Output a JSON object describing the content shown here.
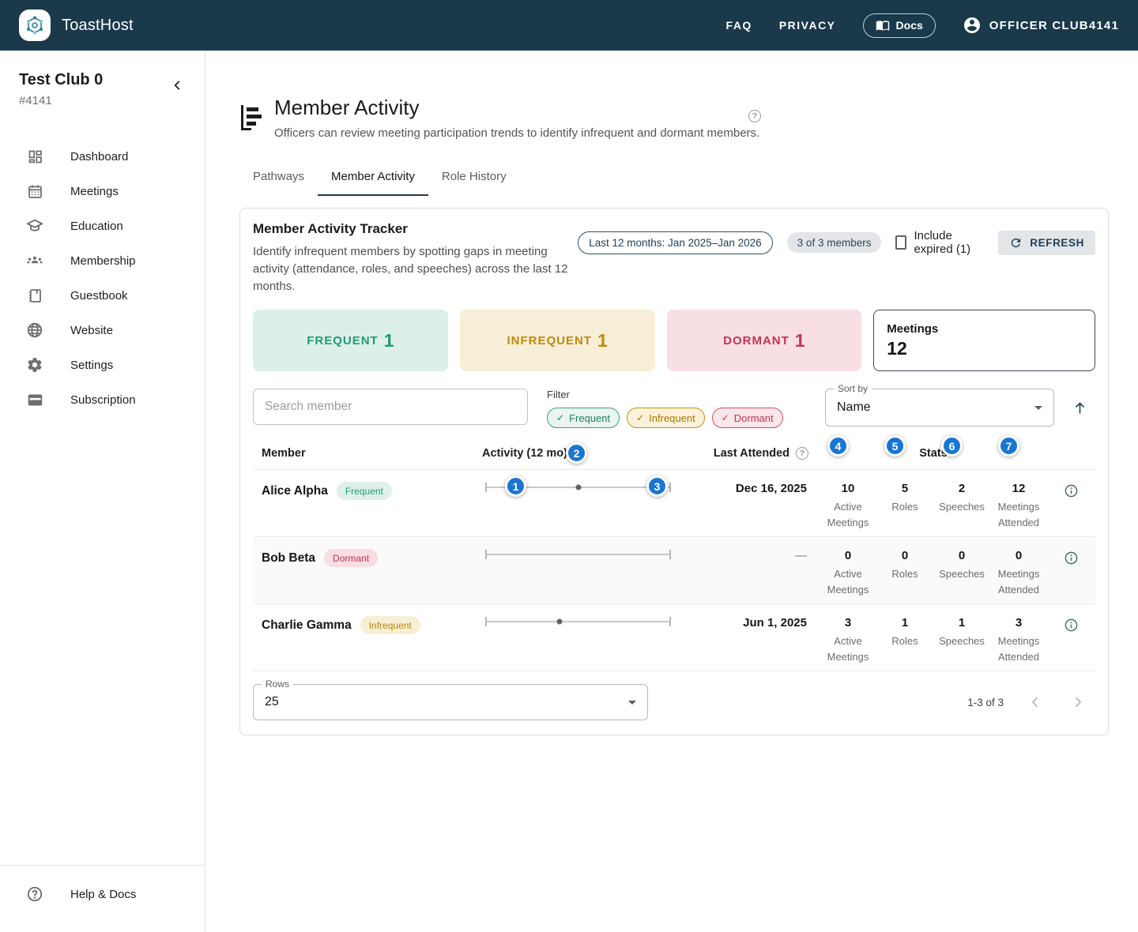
{
  "icons": {
    "question": "?",
    "check": "✓"
  },
  "header": {
    "brand": "ToastHost",
    "links": [
      {
        "label": "FAQ"
      },
      {
        "label": "PRIVACY"
      }
    ],
    "docs_button": "Docs",
    "account": "OFFICER CLUB4141"
  },
  "sidebar": {
    "club_name": "Test Club 0",
    "club_number": "#4141",
    "items": [
      {
        "label": "Dashboard"
      },
      {
        "label": "Meetings"
      },
      {
        "label": "Education"
      },
      {
        "label": "Membership"
      },
      {
        "label": "Guestbook"
      },
      {
        "label": "Website"
      },
      {
        "label": "Settings"
      },
      {
        "label": "Subscription"
      }
    ],
    "help_label": "Help & Docs"
  },
  "page": {
    "title": "Member Activity",
    "subtitle": "Officers can review meeting participation trends to identify infrequent and dormant members.",
    "tabs": [
      {
        "label": "Pathways"
      },
      {
        "label": "Member Activity"
      },
      {
        "label": "Role History"
      }
    ]
  },
  "tracker": {
    "title": "Member Activity Tracker",
    "subtitle": "Identify infrequent members by spotting gaps in meeting activity (attendance, roles, and speeches) across the last 12 months.",
    "range_chip": "Last 12 months: Jan 2025–Jan 2026",
    "members_chip": "3 of 3 members",
    "include_expired_label": "Include expired (1)",
    "refresh_label": "REFRESH",
    "summary_cards": [
      {
        "label": "FREQUENT",
        "value": "1",
        "color": "#1e9b7a",
        "bg": "#ddf0e7"
      },
      {
        "label": "INFREQUENT",
        "value": "1",
        "color": "#c0890a",
        "bg": "#f6eed7"
      },
      {
        "label": "DORMANT",
        "value": "1",
        "color": "#c43552",
        "bg": "#f8dfe3"
      }
    ],
    "meetings_card": {
      "label": "Meetings",
      "value": "12"
    },
    "search_placeholder": "Search member",
    "filter_label": "Filter",
    "filter_chips": [
      {
        "label": "Frequent"
      },
      {
        "label": "Infrequent"
      },
      {
        "label": "Dormant"
      }
    ],
    "sort_label": "Sort by",
    "sort_value": "Name"
  },
  "table": {
    "columns": {
      "member": "Member",
      "activity": "Activity (12 mo)",
      "last_attended": "Last Attended",
      "stats": "Stats"
    },
    "rows": [
      {
        "name": "Alice Alpha",
        "status": "Frequent",
        "last_attended": "Dec 16, 2025",
        "stats": [
          {
            "value": "10",
            "label": "Active Meetings"
          },
          {
            "value": "5",
            "label": "Roles"
          },
          {
            "value": "2",
            "label": "Speeches"
          },
          {
            "value": "12",
            "label": "Meetings Attended"
          }
        ],
        "timeline_dots": [
          {
            "pos": 18,
            "size": "sm"
          },
          {
            "pos": 50,
            "size": "md"
          },
          {
            "pos": 94,
            "size": "lg"
          }
        ]
      },
      {
        "name": "Bob Beta",
        "status": "Dormant",
        "last_attended": "—",
        "stats": [
          {
            "value": "0",
            "label": "Active Meetings"
          },
          {
            "value": "0",
            "label": "Roles"
          },
          {
            "value": "0",
            "label": "Speeches"
          },
          {
            "value": "0",
            "label": "Meetings Attended"
          }
        ],
        "timeline_dots": []
      },
      {
        "name": "Charlie Gamma",
        "status": "Infrequent",
        "last_attended": "Jun 1, 2025",
        "stats": [
          {
            "value": "3",
            "label": "Active Meetings"
          },
          {
            "value": "1",
            "label": "Roles"
          },
          {
            "value": "1",
            "label": "Speeches"
          },
          {
            "value": "3",
            "label": "Meetings Attended"
          }
        ],
        "timeline_dots": [
          {
            "pos": 40,
            "size": "md"
          }
        ]
      }
    ]
  },
  "pagination": {
    "rows_label": "Rows",
    "rows_value": "25",
    "range": "1-3 of 3"
  },
  "tour_badges": [
    "1",
    "2",
    "3",
    "4",
    "5",
    "6",
    "7"
  ]
}
